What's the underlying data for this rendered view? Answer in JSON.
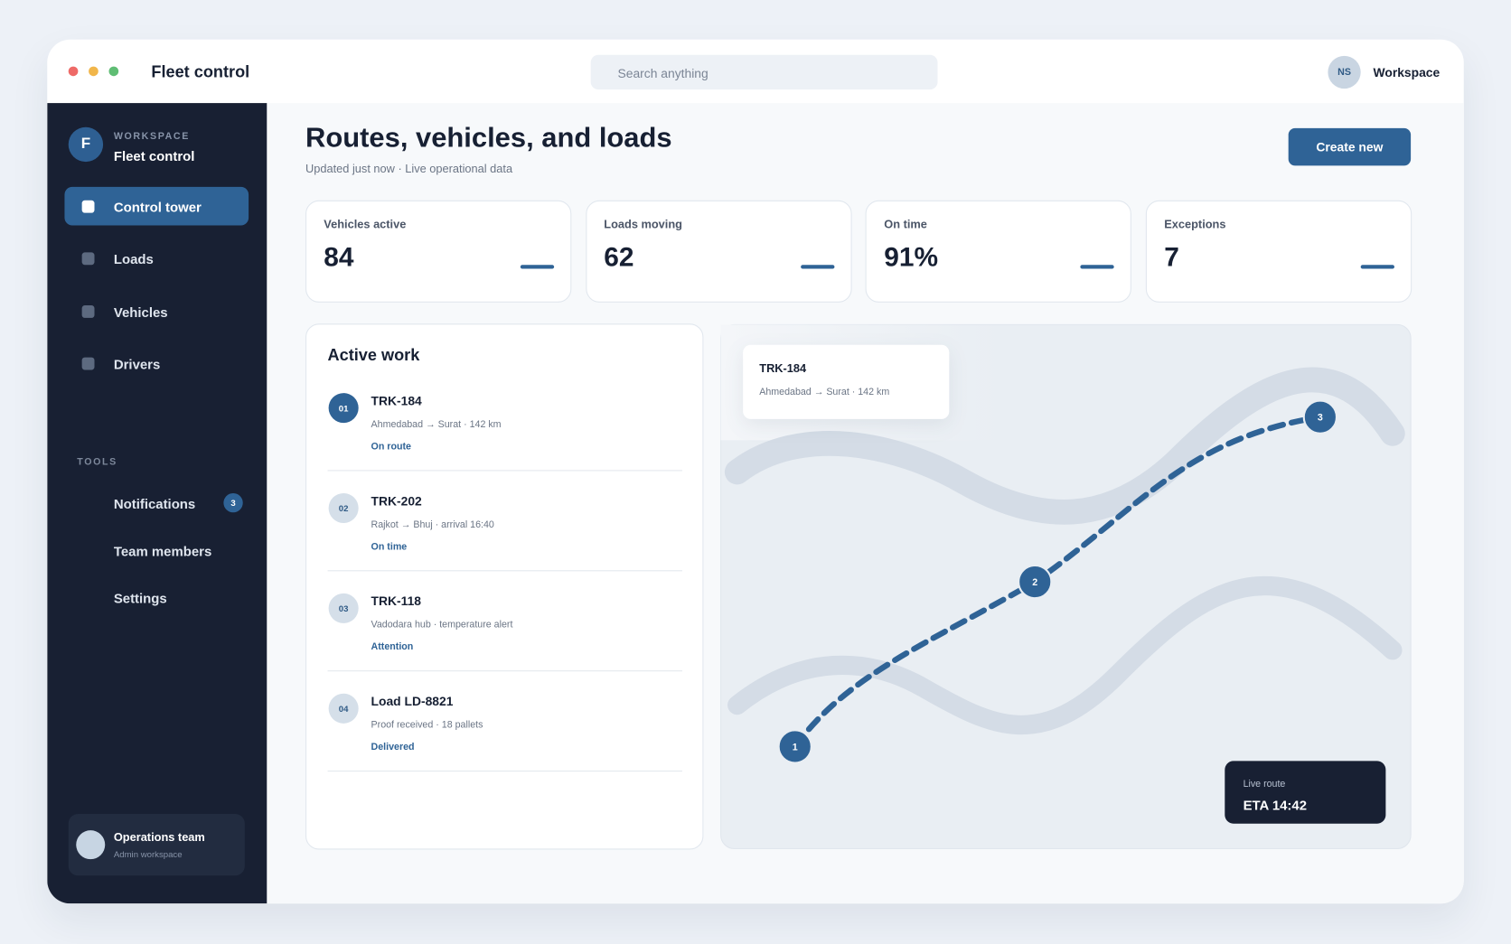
{
  "window": {
    "title": "Fleet control",
    "search_placeholder": "Search anything",
    "avatar": "NS",
    "account": "Workspace"
  },
  "sidebar": {
    "logo": "F",
    "label": "WORKSPACE",
    "name": "Fleet control",
    "nav": [
      "Control tower",
      "Loads",
      "Vehicles",
      "Drivers"
    ],
    "tools_heading": "TOOLS",
    "tools": [
      {
        "label": "Notifications",
        "badge": "3"
      },
      {
        "label": "Team members"
      },
      {
        "label": "Settings"
      }
    ],
    "footer": {
      "name": "Operations team",
      "role": "Admin workspace"
    }
  },
  "header": {
    "title": "Routes, vehicles, and loads",
    "subtitle": "Updated just now · Live operational data",
    "button": "Create new"
  },
  "kpis": [
    {
      "label": "Vehicles active",
      "value": "84"
    },
    {
      "label": "Loads moving",
      "value": "62"
    },
    {
      "label": "On time",
      "value": "91%"
    },
    {
      "label": "Exceptions",
      "value": "7"
    }
  ],
  "active_work": {
    "title": "Active work",
    "items": [
      {
        "index": "01",
        "title": "TRK-184",
        "detail": "Ahmedabad → Surat · 142 km",
        "status": "On route"
      },
      {
        "index": "02",
        "title": "TRK-202",
        "detail": "Rajkot → Bhuj · arrival 16:40",
        "status": "On time"
      },
      {
        "index": "03",
        "title": "TRK-118",
        "detail": "Vadodara hub · temperature alert",
        "status": "Attention"
      },
      {
        "index": "04",
        "title": "Load LD-8821",
        "detail": "Proof received · 18 pallets",
        "status": "Delivered"
      }
    ]
  },
  "map": {
    "tooltip": {
      "title": "TRK-184",
      "detail": "Ahmedabad → Surat · 142 km"
    },
    "stops": [
      "1",
      "2",
      "3"
    ],
    "eta": {
      "label": "Live route",
      "value": "ETA 14:42"
    }
  }
}
